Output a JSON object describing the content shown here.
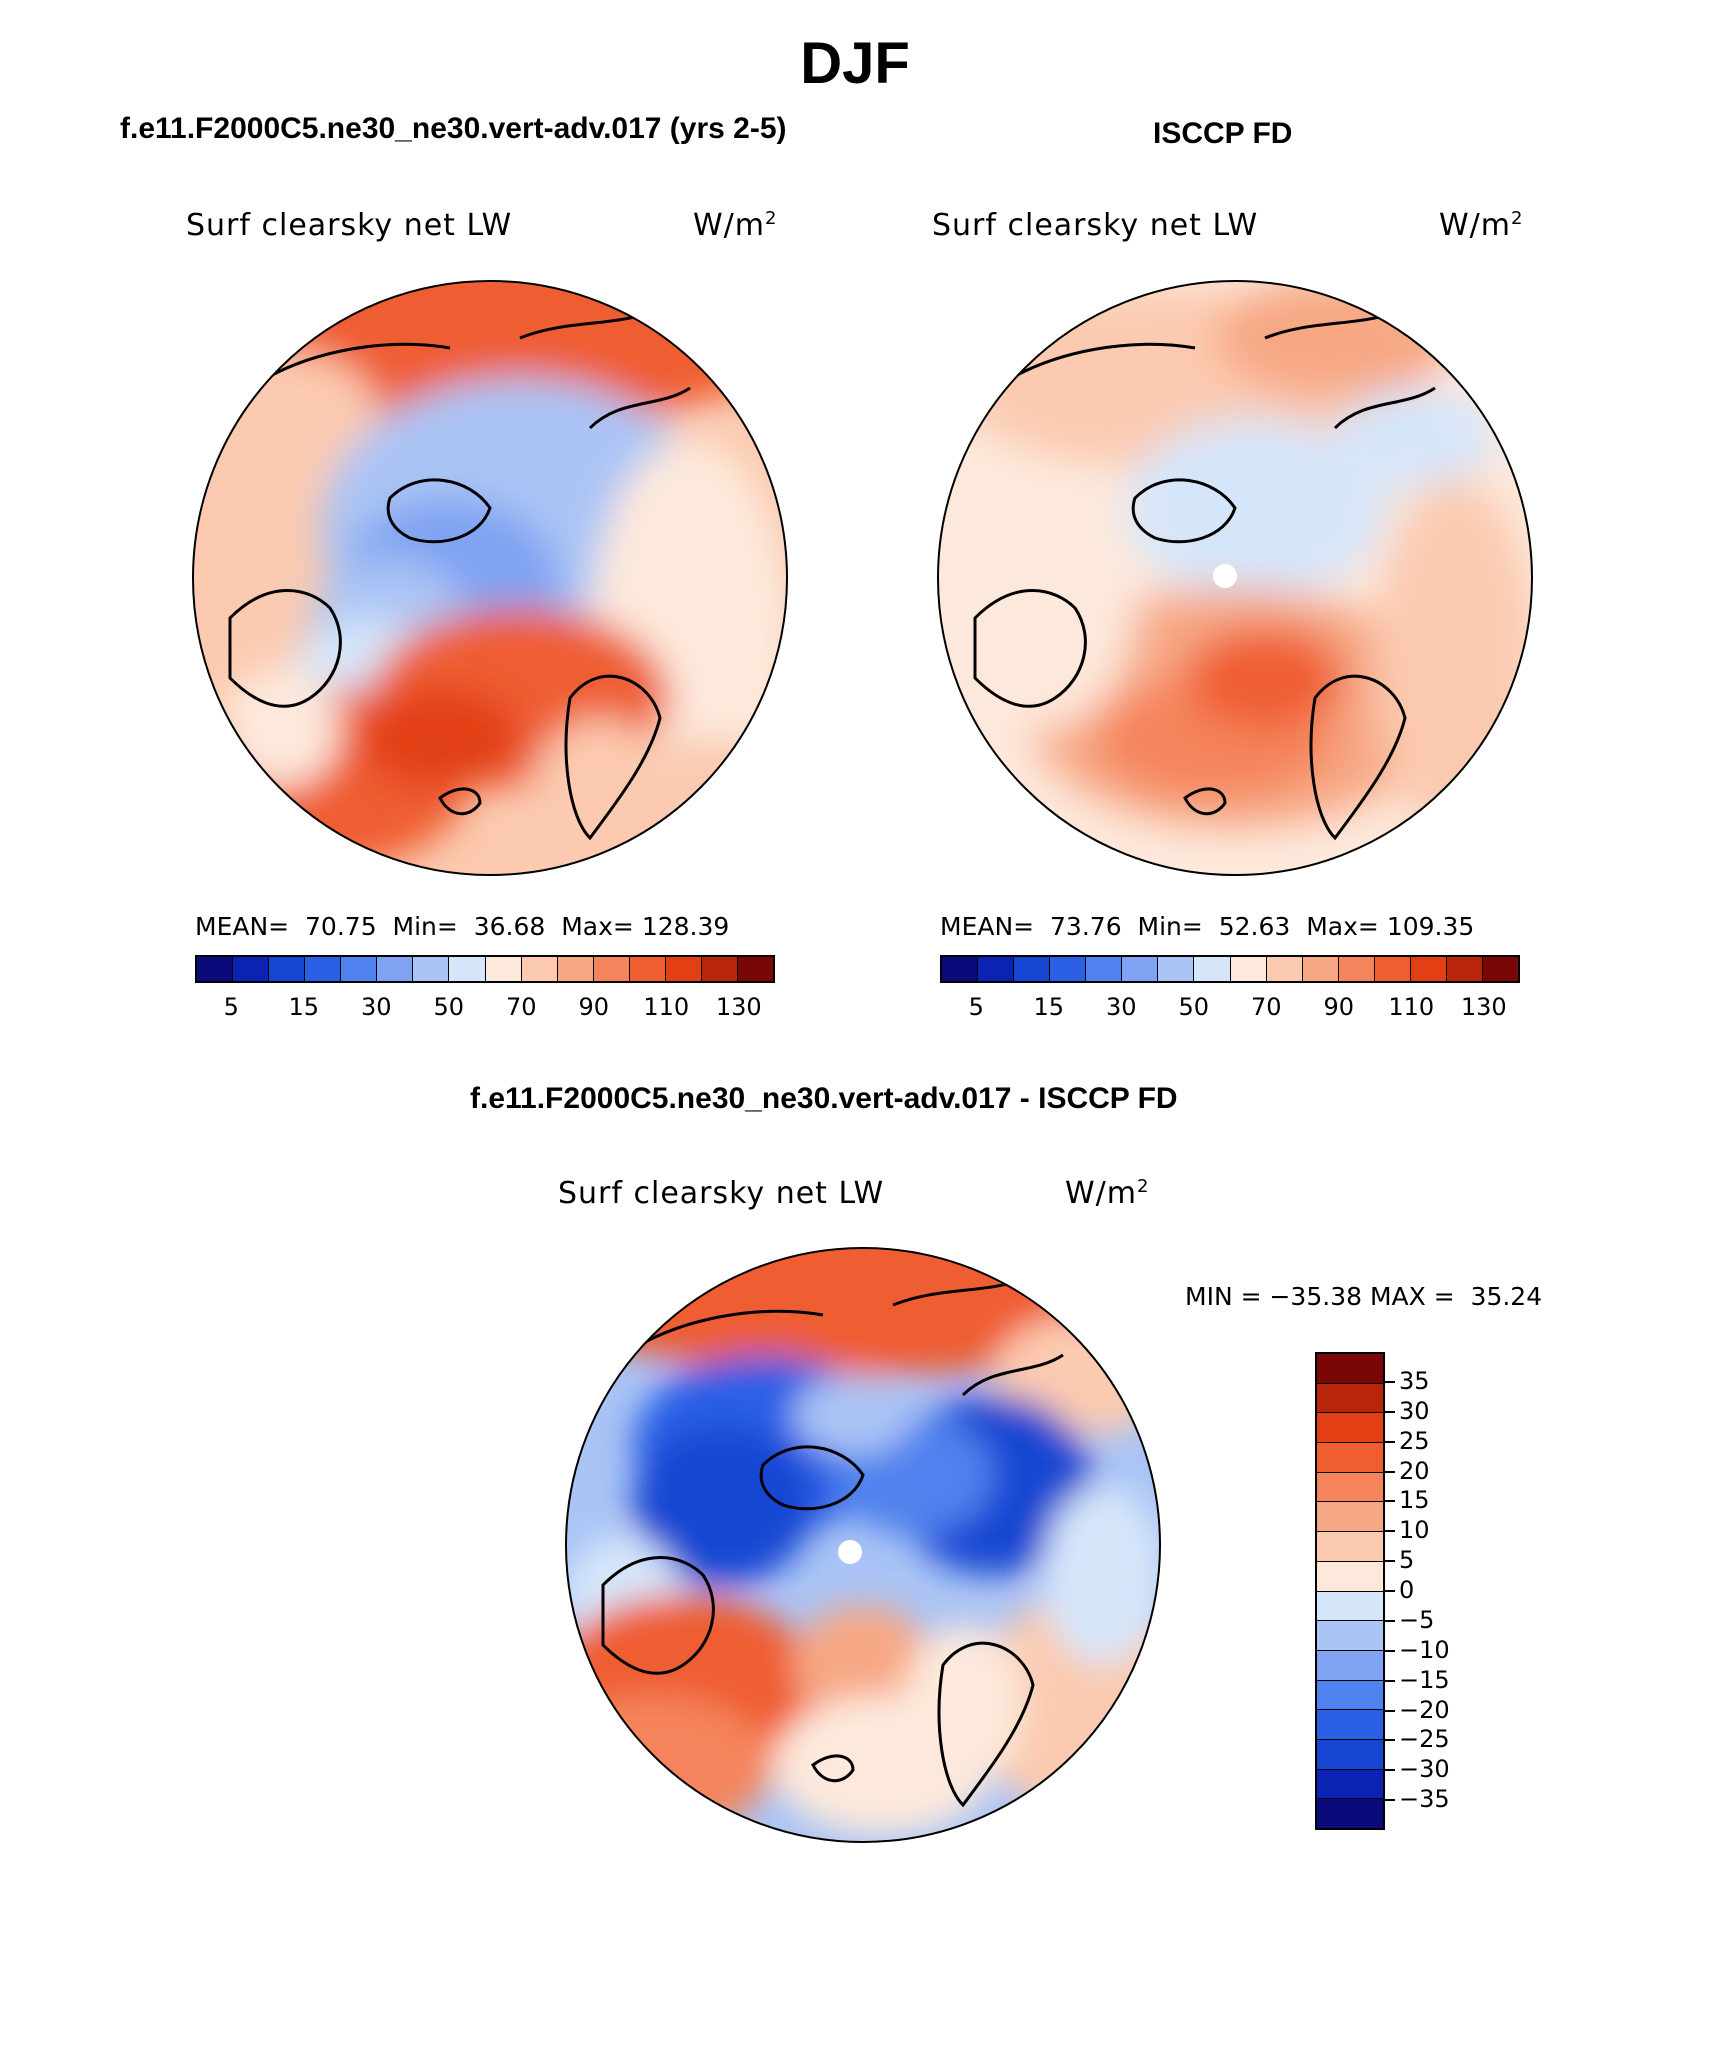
{
  "season": "DJF",
  "panels": {
    "model": {
      "header": "f.e11.F2000C5.ne30_ne30.vert-adv.017 (yrs 2-5)",
      "variable": "Surf clearsky net LW",
      "units": "W/m",
      "units_sup": "2",
      "stats": {
        "mean_label": "MEAN=",
        "mean": "70.75",
        "min_label": "Min=",
        "min": "36.68",
        "max_label": "Max=",
        "max": "128.39"
      }
    },
    "obs": {
      "header": "ISCCP FD",
      "variable": "Surf clearsky net LW",
      "units": "W/m",
      "units_sup": "2",
      "stats": {
        "mean_label": "MEAN=",
        "mean": "73.76",
        "min_label": "Min=",
        "min": "52.63",
        "max_label": "Max=",
        "max": "109.35"
      }
    },
    "diff": {
      "header": "f.e11.F2000C5.ne30_ne30.vert-adv.017 - ISCCP FD",
      "variable": "Surf clearsky net LW",
      "units": "W/m",
      "units_sup": "2",
      "minmax": "MIN = −35.38 MAX =  35.24"
    }
  },
  "colorbar_abs": {
    "colors": [
      "#0a0a7a",
      "#0a23b4",
      "#1446d2",
      "#2a5fe6",
      "#4f82ee",
      "#7fa3f2",
      "#aac4f5",
      "#d6e6fa",
      "#fde9dc",
      "#fbcab0",
      "#f7a784",
      "#f5845c",
      "#ef5d30",
      "#e23f14",
      "#b8250b",
      "#7a0606"
    ],
    "tick_labels": [
      "5",
      "15",
      "30",
      "50",
      "70",
      "90",
      "110",
      "130"
    ]
  },
  "colorbar_diff": {
    "colors": [
      "#7a0606",
      "#b8250b",
      "#e23f14",
      "#ef5d30",
      "#f5845c",
      "#f7a784",
      "#fbcab0",
      "#fde9dc",
      "#d6e6fa",
      "#aac4f5",
      "#7fa3f2",
      "#4f82ee",
      "#2a5fe6",
      "#1446d2",
      "#0a23b4",
      "#0a0a7a"
    ],
    "tick_labels": [
      "35",
      "30",
      "25",
      "20",
      "15",
      "10",
      "5",
      "0",
      "−5",
      "−10",
      "−15",
      "−20",
      "−25",
      "−30",
      "−35"
    ]
  }
}
